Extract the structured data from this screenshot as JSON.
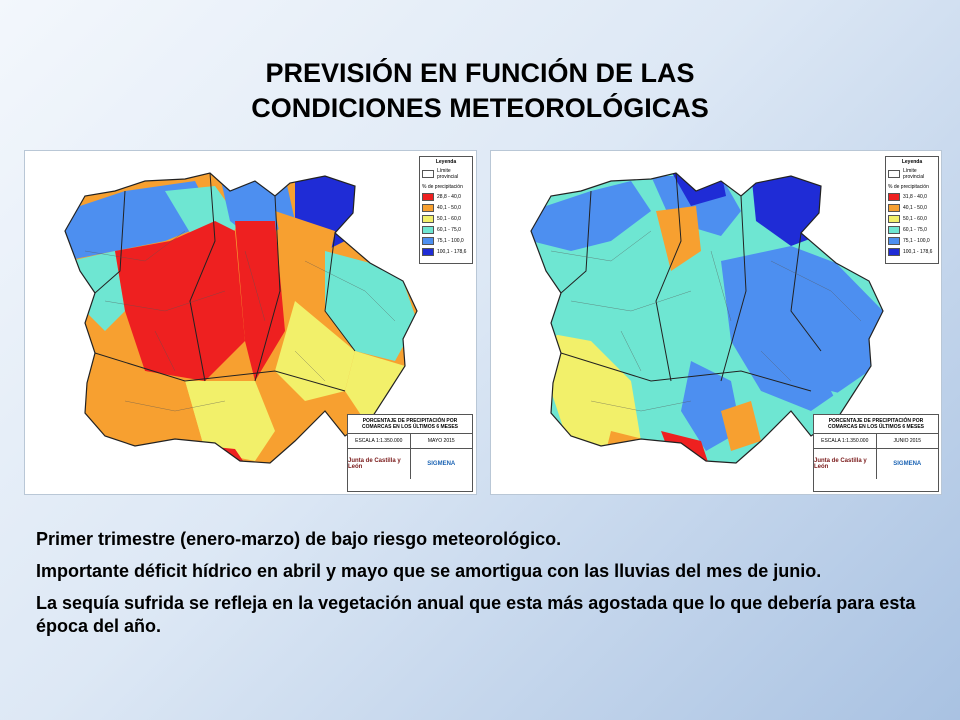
{
  "title_line1": "PREVISIÓN EN FUNCIÓN DE LAS",
  "title_line2": "CONDICIONES METEOROLÓGICAS",
  "legend_scale": [
    {
      "color": "#ee2020"
    },
    {
      "color": "#f7a030"
    },
    {
      "color": "#f2f06a"
    },
    {
      "color": "#6ee6d2"
    },
    {
      "color": "#4d8ff0"
    },
    {
      "color": "#1f2cd6"
    }
  ],
  "maps": [
    {
      "legend_title": "Leyenda",
      "legend_boundary": "Límite provincial",
      "legend_subtitle": "% de precipitación",
      "legend_ranges": [
        "28,8 - 40,0",
        "40,1 - 50,0",
        "50,1 - 60,0",
        "60,1 - 75,0",
        "75,1 - 100,0",
        "100,1 - 178,6"
      ],
      "box_title": "PORCENTAJE DE PRECIPITACIÓN POR COMARCAS EN LOS ÚLTIMOS 6 MESES",
      "scale": "ESCALA 1:1.350.000",
      "month": "MAYO 2015",
      "logo_left": "Junta de Castilla y León",
      "logo_right": "SIGMENA"
    },
    {
      "legend_title": "Leyenda",
      "legend_boundary": "Límite provincial",
      "legend_subtitle": "% de precipitación",
      "legend_ranges": [
        "31,8 - 40,0",
        "40,1 - 50,0",
        "50,1 - 60,0",
        "60,1 - 75,0",
        "75,1 - 100,0",
        "100,1 - 178,6"
      ],
      "box_title": "PORCENTAJE DE PRECIPITACIÓN POR COMARCAS EN LOS ÚLTIMOS 6 MESES",
      "scale": "ESCALA 1:1.350.000",
      "month": "JUNIO 2015",
      "logo_left": "Junta de Castilla y León",
      "logo_right": "SIGMENA"
    }
  ],
  "paragraphs": [
    "Primer trimestre (enero-marzo) de bajo riesgo meteorológico.",
    "Importante déficit hídrico en abril y mayo que se amortigua  con las lluvias del mes de junio.",
    "La sequía sufrida se refleja en la vegetación anual que esta más agostada que lo que debería para esta época del año."
  ]
}
